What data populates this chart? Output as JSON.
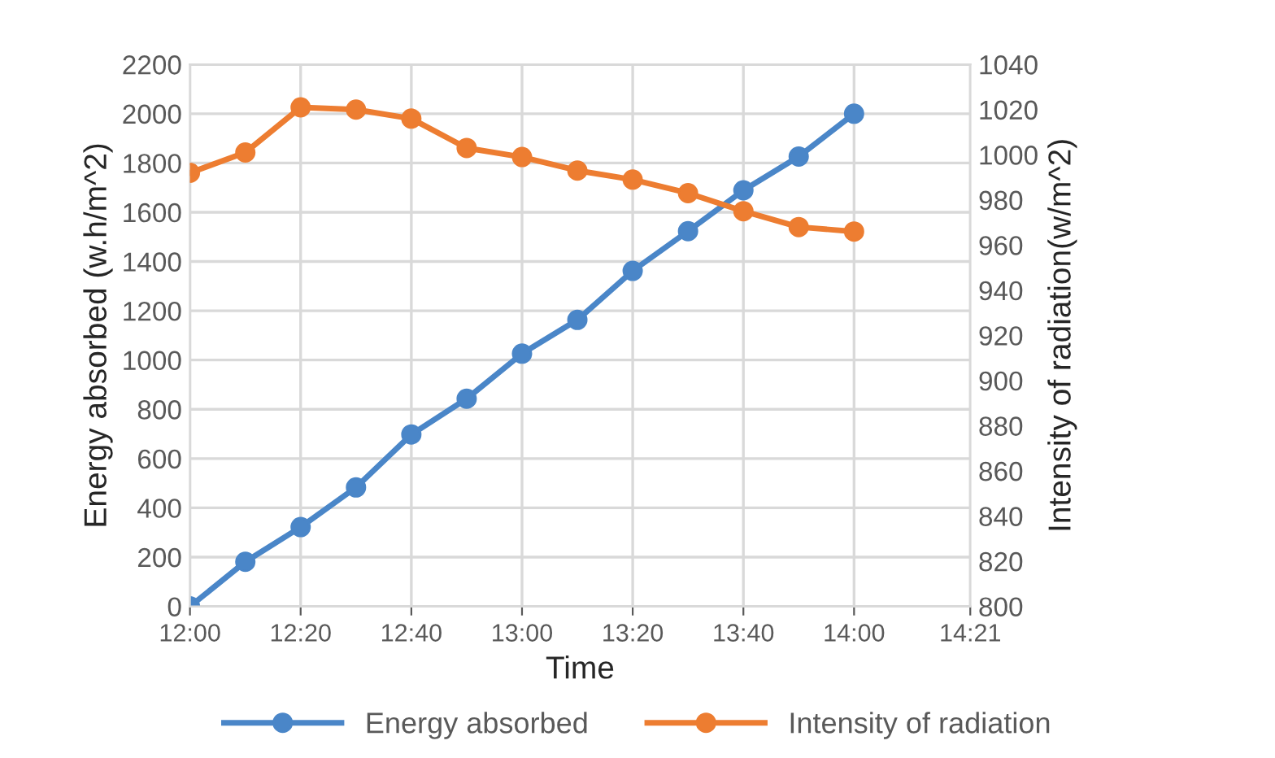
{
  "chart_data": {
    "type": "line",
    "xlabel": "Time",
    "ylabel": "Energy absorbed (w.h/m^2)",
    "y2label": "Intensity of radiation(w/m^2)",
    "x": [
      12,
      12.1667,
      12.3333,
      12.5,
      12.6667,
      12.8333,
      13,
      13.1667,
      13.3333,
      13.5,
      13.6667,
      13.8333,
      14
    ],
    "xlim": [
      12,
      14.35
    ],
    "xticks": [
      {
        "value": 12,
        "label": "12:00"
      },
      {
        "value": 12.3333,
        "label": "12:20"
      },
      {
        "value": 12.6667,
        "label": "12:40"
      },
      {
        "value": 13,
        "label": "13:00"
      },
      {
        "value": 13.3333,
        "label": "13:20"
      },
      {
        "value": 13.6667,
        "label": "13:40"
      },
      {
        "value": 14,
        "label": "14:00"
      },
      {
        "value": 14.35,
        "label": "14:21"
      }
    ],
    "ylim": [
      0,
      2200
    ],
    "yticks": [
      0,
      200,
      400,
      600,
      800,
      1000,
      1200,
      1400,
      1600,
      1800,
      2000,
      2200
    ],
    "y2lim": [
      800,
      1040
    ],
    "y2ticks": [
      800,
      820,
      840,
      860,
      880,
      900,
      920,
      940,
      960,
      980,
      1000,
      1020,
      1040
    ],
    "series": [
      {
        "name": "Energy absorbed",
        "color": "#4a86c8",
        "values": [
          0,
          181,
          322,
          483,
          698,
          843,
          1026,
          1163,
          1362,
          1523,
          1689,
          1826,
          2000
        ]
      },
      {
        "name": "Intensity of radiation",
        "color": "#ed7d31",
        "axis": "y2",
        "values": [
          992,
          1001,
          1021,
          1020,
          1016,
          1003,
          999,
          993,
          989,
          983,
          975,
          968,
          966
        ]
      }
    ],
    "marker": "circle",
    "line_style": "solid",
    "grid": true,
    "legend": "bottom"
  }
}
